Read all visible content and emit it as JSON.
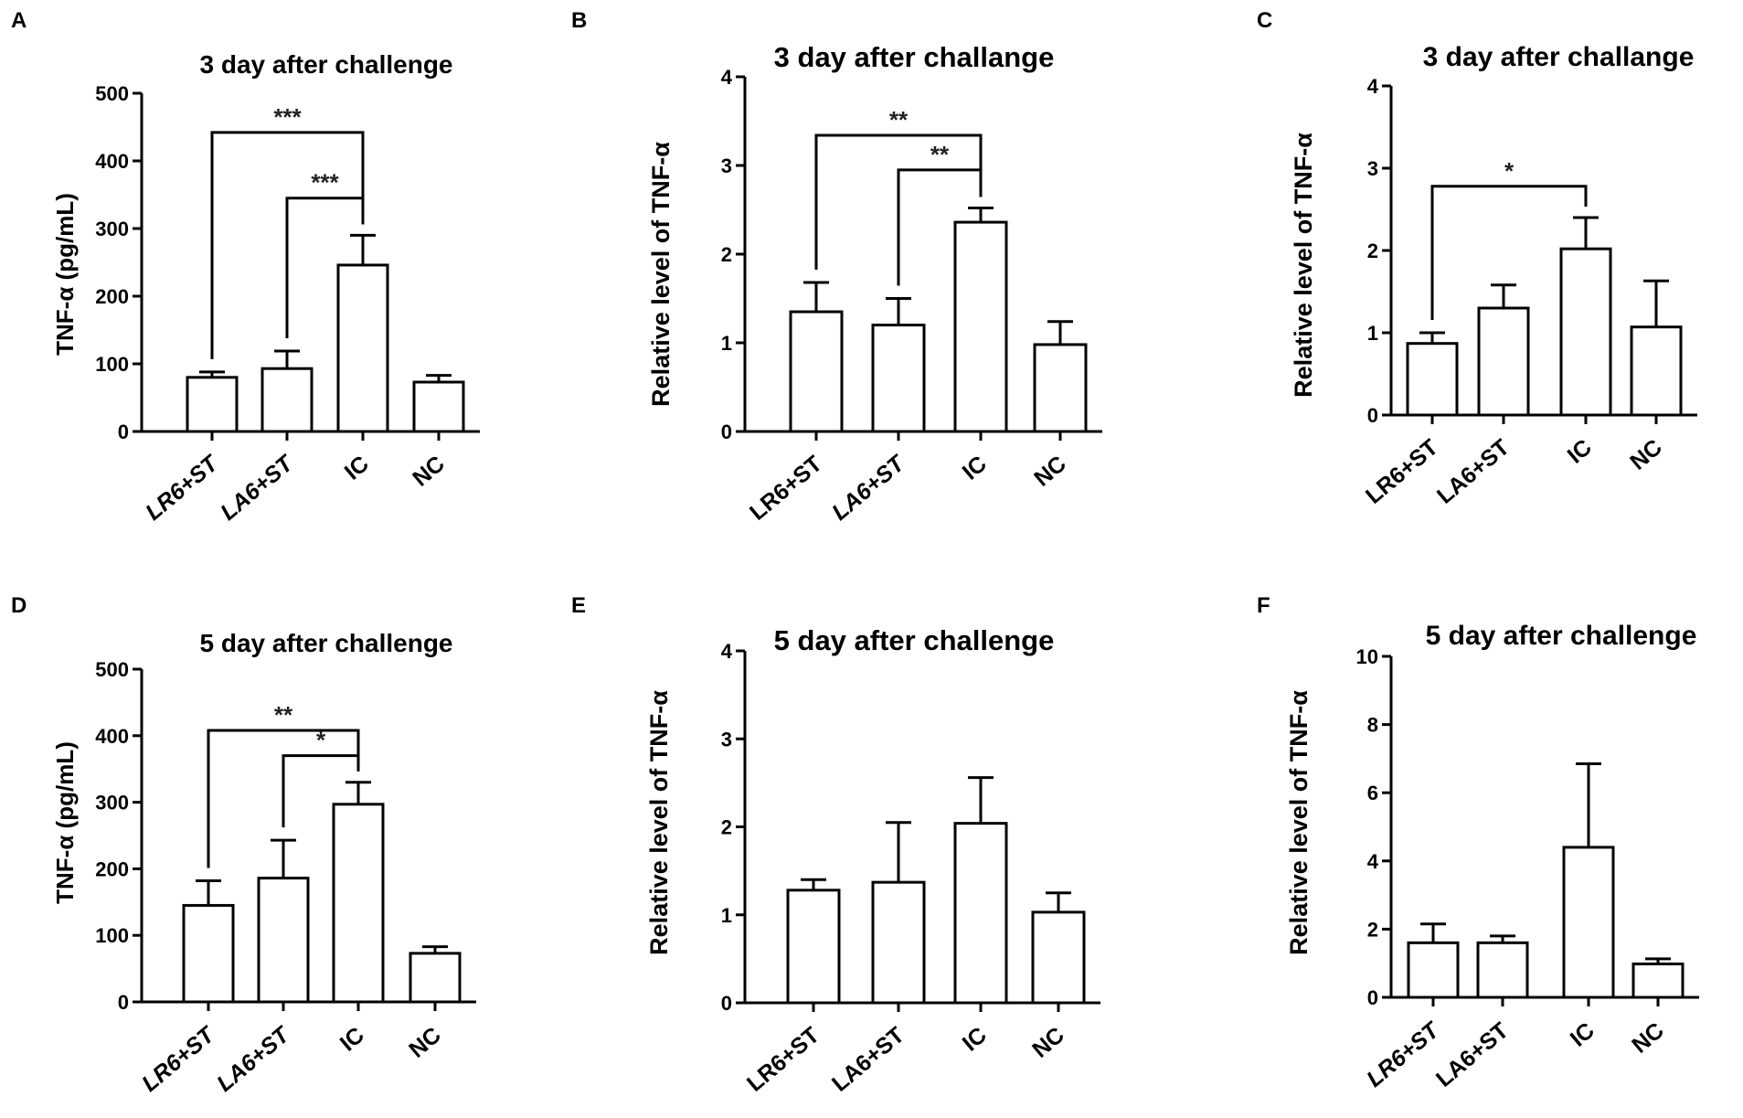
{
  "chart_data": [
    {
      "panel": "A",
      "type": "bar",
      "title": "3 day after challenge",
      "ylabel": "TNF-α (pg/mL)",
      "categories": [
        "LR6+ST",
        "LA6+ST",
        "IC",
        "NC"
      ],
      "italic_categories": [
        true,
        true,
        false,
        false
      ],
      "values": [
        80,
        93,
        246,
        73
      ],
      "errors": [
        8,
        26,
        44,
        10
      ],
      "ylim": [
        0,
        500
      ],
      "yticks": [
        0,
        100,
        200,
        300,
        400,
        500
      ],
      "tick_labels": [
        "0",
        "100",
        "200",
        "300",
        "400",
        "500"
      ],
      "significance": [
        {
          "from": 0,
          "to": 2,
          "level": 442,
          "label": "***"
        },
        {
          "from": 1,
          "to": 2,
          "level": 345,
          "label": "***"
        }
      ]
    },
    {
      "panel": "B",
      "type": "bar",
      "title": "3 day after challange",
      "ylabel": "Relative level of TNF-α",
      "categories": [
        "LR6+ST",
        "LA6+ST",
        "IC",
        "NC"
      ],
      "italic_categories": [
        false,
        true,
        false,
        false
      ],
      "values": [
        1.35,
        1.2,
        2.36,
        0.98
      ],
      "errors": [
        0.33,
        0.3,
        0.16,
        0.26
      ],
      "ylim": [
        0,
        4
      ],
      "yticks": [
        0,
        1,
        2,
        3,
        4
      ],
      "tick_labels": [
        "0",
        "1",
        "2",
        "3",
        "4"
      ],
      "significance": [
        {
          "from": 0,
          "to": 2,
          "level": 3.34,
          "label": "**"
        },
        {
          "from": 1,
          "to": 2,
          "level": 2.95,
          "label": "**"
        }
      ]
    },
    {
      "panel": "C",
      "type": "bar",
      "title": "3 day after challange",
      "ylabel": "Relative level of TNF-α",
      "categories": [
        "LR6+ST",
        "LA6+ST",
        "IC",
        "NC"
      ],
      "italic_categories": [
        false,
        false,
        false,
        false
      ],
      "values": [
        0.87,
        1.3,
        2.02,
        1.07
      ],
      "errors": [
        0.13,
        0.28,
        0.38,
        0.56
      ],
      "ylim": [
        0,
        4
      ],
      "yticks": [
        0,
        1,
        2,
        3,
        4
      ],
      "tick_labels": [
        "0",
        "1",
        "2",
        "3",
        "4"
      ],
      "significance": [
        {
          "from": 0,
          "to": 2,
          "level": 2.78,
          "label": "*"
        }
      ]
    },
    {
      "panel": "D",
      "type": "bar",
      "title": "5 day after challenge",
      "ylabel": "TNF-α (pg/mL)",
      "categories": [
        "LR6+ST",
        "LA6+ST",
        "IC",
        "NC"
      ],
      "italic_categories": [
        true,
        true,
        false,
        false
      ],
      "values": [
        145,
        186,
        297,
        73
      ],
      "errors": [
        37,
        57,
        33,
        10
      ],
      "ylim": [
        0,
        500
      ],
      "yticks": [
        0,
        100,
        200,
        300,
        400,
        500
      ],
      "tick_labels": [
        "0",
        "100",
        "200",
        "300",
        "400",
        "500"
      ],
      "significance": [
        {
          "from": 0,
          "to": 2,
          "level": 408,
          "label": "**"
        },
        {
          "from": 1,
          "to": 2,
          "level": 370,
          "label": "*"
        }
      ]
    },
    {
      "panel": "E",
      "type": "bar",
      "title": "5 day after challenge",
      "ylabel": "Relative level of TNF-α",
      "categories": [
        "LR6+ST",
        "LA6+ST",
        "IC",
        "NC"
      ],
      "italic_categories": [
        false,
        false,
        false,
        false
      ],
      "values": [
        1.28,
        1.37,
        2.04,
        1.03
      ],
      "errors": [
        0.12,
        0.68,
        0.52,
        0.22
      ],
      "ylim": [
        0,
        4
      ],
      "yticks": [
        0,
        1,
        2,
        3,
        4
      ],
      "tick_labels": [
        "0",
        "1",
        "2",
        "3",
        "4"
      ],
      "significance": []
    },
    {
      "panel": "F",
      "type": "bar",
      "title": "5 day after challenge",
      "ylabel": "Relative level of TNF-α",
      "categories": [
        "LR6+ST",
        "LA6+ST",
        "IC",
        "NC"
      ],
      "italic_categories": [
        true,
        false,
        false,
        false
      ],
      "values": [
        1.6,
        1.6,
        4.4,
        0.98
      ],
      "errors": [
        0.55,
        0.2,
        2.45,
        0.15
      ],
      "ylim": [
        0,
        10
      ],
      "yticks": [
        0,
        2,
        4,
        6,
        8,
        10
      ],
      "tick_labels": [
        "0",
        "2",
        "4",
        "6",
        "8",
        "10"
      ],
      "significance": []
    }
  ]
}
